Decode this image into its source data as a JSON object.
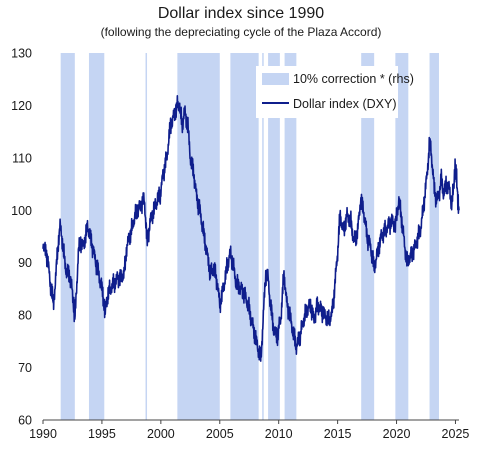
{
  "chart_data": {
    "type": "line",
    "title": "Dollar index since 1990",
    "subtitle": "(following the depreciating cycle of the Plaza Accord)",
    "xlim": [
      1990,
      2025.3
    ],
    "ylim": [
      60,
      130
    ],
    "x_ticks": [
      "1990",
      "1995",
      "2000",
      "2005",
      "2010",
      "2015",
      "2020",
      "2025"
    ],
    "y_ticks": [
      "60",
      "70",
      "80",
      "90",
      "100",
      "110",
      "120",
      "130"
    ],
    "colors": {
      "line": "#0f1e8c",
      "band": "#c5d5f3"
    },
    "legend_position": "top-right",
    "bands": {
      "name": "10% correction * (rhs)",
      "periods": [
        [
          1991.5,
          1992.7
        ],
        [
          1993.9,
          1995.2
        ],
        [
          1998.7,
          1998.8
        ],
        [
          2001.4,
          2005.0
        ],
        [
          2005.9,
          2008.3
        ],
        [
          2008.6,
          2008.7
        ],
        [
          2009.1,
          2010.1
        ],
        [
          2010.5,
          2011.5
        ],
        [
          2017.0,
          2018.1
        ],
        [
          2019.9,
          2021.0
        ],
        [
          2022.8,
          2023.6
        ]
      ]
    },
    "series": [
      {
        "name": "Dollar index (DXY)",
        "points": [
          [
            1990.0,
            94
          ],
          [
            1990.2,
            92
          ],
          [
            1990.4,
            91
          ],
          [
            1990.6,
            86
          ],
          [
            1990.8,
            84
          ],
          [
            1990.9,
            82
          ],
          [
            1991.1,
            88
          ],
          [
            1991.3,
            94
          ],
          [
            1991.45,
            97
          ],
          [
            1991.6,
            95
          ],
          [
            1991.8,
            91
          ],
          [
            1992.0,
            88
          ],
          [
            1992.2,
            88
          ],
          [
            1992.4,
            86
          ],
          [
            1992.6,
            82
          ],
          [
            1992.7,
            79
          ],
          [
            1992.85,
            85
          ],
          [
            1993.0,
            92
          ],
          [
            1993.2,
            94
          ],
          [
            1993.4,
            93
          ],
          [
            1993.6,
            95
          ],
          [
            1993.8,
            97
          ],
          [
            1994.0,
            95
          ],
          [
            1994.2,
            93
          ],
          [
            1994.4,
            91
          ],
          [
            1994.6,
            89
          ],
          [
            1994.8,
            87
          ],
          [
            1995.0,
            85
          ],
          [
            1995.2,
            82
          ],
          [
            1995.3,
            81
          ],
          [
            1995.5,
            84
          ],
          [
            1995.7,
            85
          ],
          [
            1996.0,
            86
          ],
          [
            1996.3,
            87
          ],
          [
            1996.6,
            87
          ],
          [
            1996.9,
            88
          ],
          [
            1997.1,
            93
          ],
          [
            1997.35,
            95
          ],
          [
            1997.6,
            97
          ],
          [
            1997.8,
            99
          ],
          [
            1998.0,
            100
          ],
          [
            1998.3,
            101
          ],
          [
            1998.6,
            102
          ],
          [
            1998.75,
            97
          ],
          [
            1998.85,
            94
          ],
          [
            1999.1,
            98
          ],
          [
            1999.4,
            100
          ],
          [
            1999.7,
            102
          ],
          [
            1999.95,
            103
          ],
          [
            2000.2,
            107
          ],
          [
            2000.5,
            110
          ],
          [
            2000.8,
            116
          ],
          [
            2001.1,
            118
          ],
          [
            2001.4,
            120
          ],
          [
            2001.6,
            120
          ],
          [
            2001.8,
            116
          ],
          [
            2002.0,
            119
          ],
          [
            2002.3,
            116
          ],
          [
            2002.5,
            110
          ],
          [
            2002.8,
            107
          ],
          [
            2003.0,
            103
          ],
          [
            2003.3,
            100
          ],
          [
            2003.6,
            96
          ],
          [
            2003.9,
            92
          ],
          [
            2004.2,
            88
          ],
          [
            2004.5,
            89
          ],
          [
            2004.8,
            86
          ],
          [
            2005.0,
            82
          ],
          [
            2005.3,
            85
          ],
          [
            2005.6,
            89
          ],
          [
            2005.9,
            92
          ],
          [
            2006.1,
            90
          ],
          [
            2006.4,
            86
          ],
          [
            2006.8,
            85
          ],
          [
            2007.1,
            84
          ],
          [
            2007.4,
            82
          ],
          [
            2007.7,
            79
          ],
          [
            2008.0,
            76
          ],
          [
            2008.3,
            73
          ],
          [
            2008.5,
            72
          ],
          [
            2008.7,
            80
          ],
          [
            2008.9,
            88
          ],
          [
            2009.1,
            87
          ],
          [
            2009.3,
            82
          ],
          [
            2009.6,
            77
          ],
          [
            2009.9,
            76
          ],
          [
            2010.2,
            80
          ],
          [
            2010.45,
            88
          ],
          [
            2010.7,
            82
          ],
          [
            2010.95,
            80
          ],
          [
            2011.2,
            77
          ],
          [
            2011.5,
            74
          ],
          [
            2011.8,
            76
          ],
          [
            2012.1,
            79
          ],
          [
            2012.4,
            81
          ],
          [
            2012.7,
            82
          ],
          [
            2013.0,
            79
          ],
          [
            2013.3,
            82
          ],
          [
            2013.6,
            81
          ],
          [
            2013.9,
            80
          ],
          [
            2014.2,
            79
          ],
          [
            2014.5,
            80
          ],
          [
            2014.7,
            84
          ],
          [
            2015.0,
            92
          ],
          [
            2015.2,
            99
          ],
          [
            2015.5,
            96
          ],
          [
            2015.8,
            99
          ],
          [
            2016.1,
            98
          ],
          [
            2016.4,
            94
          ],
          [
            2016.7,
            96
          ],
          [
            2016.95,
            102
          ],
          [
            2017.2,
            100
          ],
          [
            2017.5,
            95
          ],
          [
            2017.8,
            93
          ],
          [
            2018.1,
            89
          ],
          [
            2018.4,
            92
          ],
          [
            2018.7,
            95
          ],
          [
            2019.0,
            96
          ],
          [
            2019.3,
            97
          ],
          [
            2019.6,
            98
          ],
          [
            2019.9,
            97
          ],
          [
            2020.2,
            102
          ],
          [
            2020.4,
            99
          ],
          [
            2020.7,
            93
          ],
          [
            2020.9,
            90
          ],
          [
            2021.1,
            91
          ],
          [
            2021.4,
            92
          ],
          [
            2021.7,
            94
          ],
          [
            2022.0,
            96
          ],
          [
            2022.2,
            99
          ],
          [
            2022.4,
            103
          ],
          [
            2022.6,
            107
          ],
          [
            2022.8,
            113
          ],
          [
            2022.95,
            111
          ],
          [
            2023.2,
            104
          ],
          [
            2023.4,
            102
          ],
          [
            2023.6,
            103
          ],
          [
            2023.8,
            106
          ],
          [
            2024.0,
            103
          ],
          [
            2024.2,
            105
          ],
          [
            2024.5,
            104
          ],
          [
            2024.7,
            101
          ],
          [
            2024.9,
            106
          ],
          [
            2025.0,
            109
          ],
          [
            2025.1,
            106
          ],
          [
            2025.2,
            102
          ],
          [
            2025.3,
            100
          ]
        ]
      }
    ]
  }
}
